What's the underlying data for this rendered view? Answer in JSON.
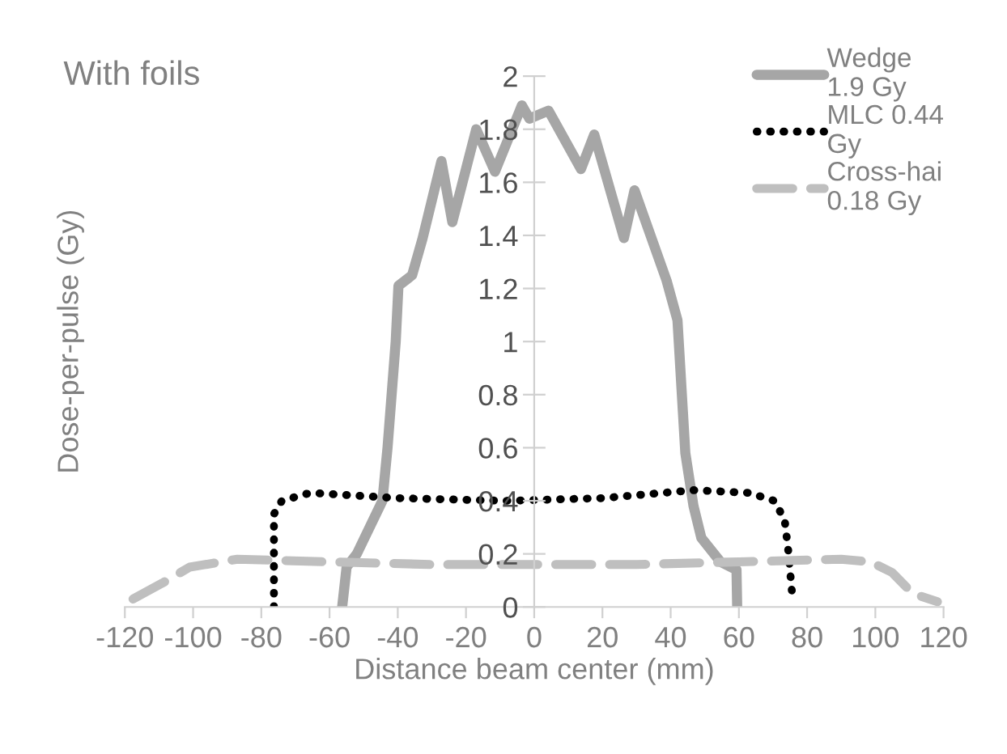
{
  "chart_data": {
    "type": "line",
    "title": "With foils",
    "xlabel": "Distance beam center (mm)",
    "ylabel": "Dose-per-pulse (Gy)",
    "xlim": [
      -120,
      120
    ],
    "xticks": [
      -120,
      -100,
      -80,
      -60,
      -40,
      -20,
      0,
      20,
      40,
      60,
      80,
      100,
      120
    ],
    "ylim": [
      0,
      2
    ],
    "yticks": [
      0,
      0.2,
      0.4,
      0.6,
      0.8,
      1,
      1.2,
      1.4,
      1.6,
      1.8,
      2
    ],
    "grid": false,
    "legend": "top right",
    "series": [
      {
        "name": "Wedge\n1.9 Gy",
        "color": "#a6a6a6",
        "line_style": "solid",
        "x": [
          -56.3,
          -55,
          -52,
          -44.5,
          -43,
          -40.6,
          -39.8,
          -35.8,
          -32.7,
          -27.2,
          -24,
          -17,
          -11.5,
          -3.6,
          -1.4,
          4.2,
          13.7,
          17.6,
          26.3,
          29.4,
          38.8,
          42,
          44.3,
          46.7,
          49,
          54.6,
          59.3,
          59.5
        ],
        "values": [
          0,
          0.15,
          0.2,
          0.4,
          0.6,
          1.0,
          1.21,
          1.25,
          1.39,
          1.68,
          1.45,
          1.8,
          1.64,
          1.89,
          1.84,
          1.87,
          1.65,
          1.78,
          1.39,
          1.57,
          1.23,
          1.08,
          0.58,
          0.38,
          0.26,
          0.17,
          0.14,
          0
        ]
      },
      {
        "name": "MLC 0.44\nGy",
        "color": "#000000",
        "line_style": "dotted",
        "x": [
          -76.3,
          -76.3,
          -74,
          -65.7,
          -40,
          -8.3,
          20,
          46.7,
          63.2,
          70.3,
          73.4,
          74.5,
          75.8
        ],
        "values": [
          0,
          0.35,
          0.4,
          0.43,
          0.41,
          0.4,
          0.41,
          0.44,
          0.43,
          0.4,
          0.33,
          0.21,
          0.02
        ]
      },
      {
        "name": "Cross-hai\n0.18 Gy",
        "color": "#bfbfbf",
        "line_style": "dashed",
        "x": [
          -117.6,
          -109,
          -101,
          -87,
          -60,
          -30,
          0,
          30,
          60,
          90,
          98.6,
          104.9,
          111,
          118.2
        ],
        "values": [
          0.03,
          0.09,
          0.15,
          0.18,
          0.17,
          0.16,
          0.16,
          0.16,
          0.17,
          0.18,
          0.17,
          0.13,
          0.05,
          0.02
        ]
      }
    ]
  }
}
